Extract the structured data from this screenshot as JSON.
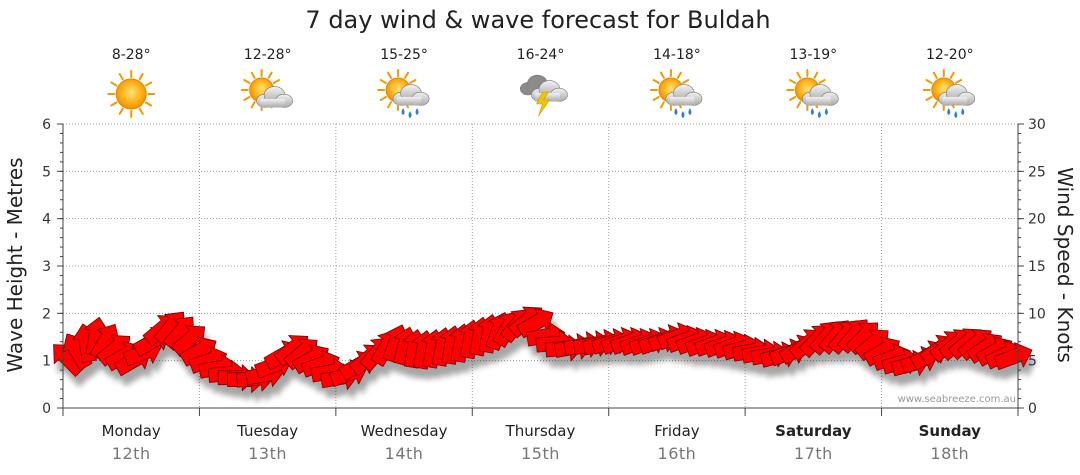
{
  "chart_data": {
    "type": "line",
    "title": "7 day wind & wave forecast for Buldah",
    "y_left": {
      "label": "Wave Height - Metres",
      "range": [
        0,
        6
      ],
      "ticks": [
        "0",
        "1",
        "2",
        "3",
        "4",
        "5",
        "6"
      ]
    },
    "y_right": {
      "label": "Wind Speed - Knots",
      "range": [
        0,
        30
      ],
      "ticks": [
        "0",
        "5",
        "10",
        "15",
        "20",
        "25",
        "30"
      ]
    },
    "grid": true,
    "days": [
      {
        "name": "Monday",
        "date": "12th",
        "temp": "8-28°",
        "icon": "sunny-icon",
        "weekend": false
      },
      {
        "name": "Tuesday",
        "date": "13th",
        "temp": "12-28°",
        "icon": "partly-cloudy-icon",
        "weekend": false
      },
      {
        "name": "Wednesday",
        "date": "14th",
        "temp": "15-25°",
        "icon": "sun-cloud-rain-icon",
        "weekend": false
      },
      {
        "name": "Thursday",
        "date": "15th",
        "temp": "16-24°",
        "icon": "thunderstorm-icon",
        "weekend": false
      },
      {
        "name": "Friday",
        "date": "16th",
        "temp": "14-18°",
        "icon": "sun-cloud-rain-icon",
        "weekend": false
      },
      {
        "name": "Saturday",
        "date": "17th",
        "temp": "13-19°",
        "icon": "sun-cloud-rain-icon",
        "weekend": true
      },
      {
        "name": "Sunday",
        "date": "18th",
        "temp": "12-20°",
        "icon": "sun-cloud-rain-icon",
        "weekend": true
      }
    ],
    "series": [
      {
        "name": "Wind",
        "unit": "knots",
        "color": "#ff0000",
        "values": [
          5.2,
          6.0,
          6.8,
          7.5,
          7.0,
          6.2,
          5.5,
          5.0,
          5.8,
          7.0,
          8.3,
          8.5,
          8.0,
          7.2,
          6.0,
          5.0,
          4.2,
          3.6,
          3.2,
          3.0,
          3.1,
          3.5,
          4.5,
          5.6,
          6.2,
          5.8,
          5.2,
          4.6,
          3.8,
          3.2,
          3.6,
          4.5,
          5.2,
          5.8,
          6.4,
          6.8,
          6.5,
          6.2,
          6.1,
          6.2,
          6.4,
          6.6,
          6.8,
          7.2,
          7.5,
          7.8,
          8.1,
          8.4,
          8.8,
          9.2,
          9.0,
          7.6,
          6.8,
          6.3,
          6.4,
          6.6,
          6.7,
          6.8,
          6.9,
          7.0,
          7.0,
          6.9,
          6.9,
          7.0,
          7.3,
          7.5,
          7.2,
          7.0,
          6.8,
          6.8,
          6.7,
          6.6,
          6.3,
          6.0,
          5.8,
          5.6,
          5.5,
          5.8,
          6.2,
          6.8,
          7.2,
          7.5,
          7.6,
          7.6,
          7.7,
          7.5,
          6.8,
          6.0,
          5.3,
          4.8,
          4.6,
          5.0,
          5.6,
          6.2,
          6.6,
          6.8,
          6.9,
          6.8,
          6.4,
          6.0,
          5.6,
          5.4
        ],
        "direction_deg": [
          45,
          60,
          80,
          100,
          120,
          140,
          150,
          150,
          160,
          150,
          140,
          130,
          130,
          140,
          150,
          160,
          170,
          175,
          180,
          180,
          175,
          170,
          160,
          150,
          140,
          140,
          150,
          160,
          170,
          170,
          160,
          150,
          140,
          130,
          120,
          110,
          105,
          100,
          100,
          100,
          100,
          100,
          100,
          100,
          100,
          100,
          110,
          120,
          130,
          140,
          150,
          170,
          175,
          175,
          170,
          170,
          170,
          165,
          165,
          160,
          160,
          160,
          160,
          160,
          160,
          160,
          160,
          160,
          160,
          160,
          160,
          160,
          165,
          170,
          170,
          170,
          165,
          160,
          150,
          140,
          135,
          130,
          130,
          130,
          130,
          135,
          140,
          150,
          160,
          165,
          165,
          160,
          150,
          145,
          140,
          140,
          140,
          140,
          145,
          150,
          155,
          160
        ]
      }
    ]
  },
  "credit": "www.seabreeze.com.au"
}
